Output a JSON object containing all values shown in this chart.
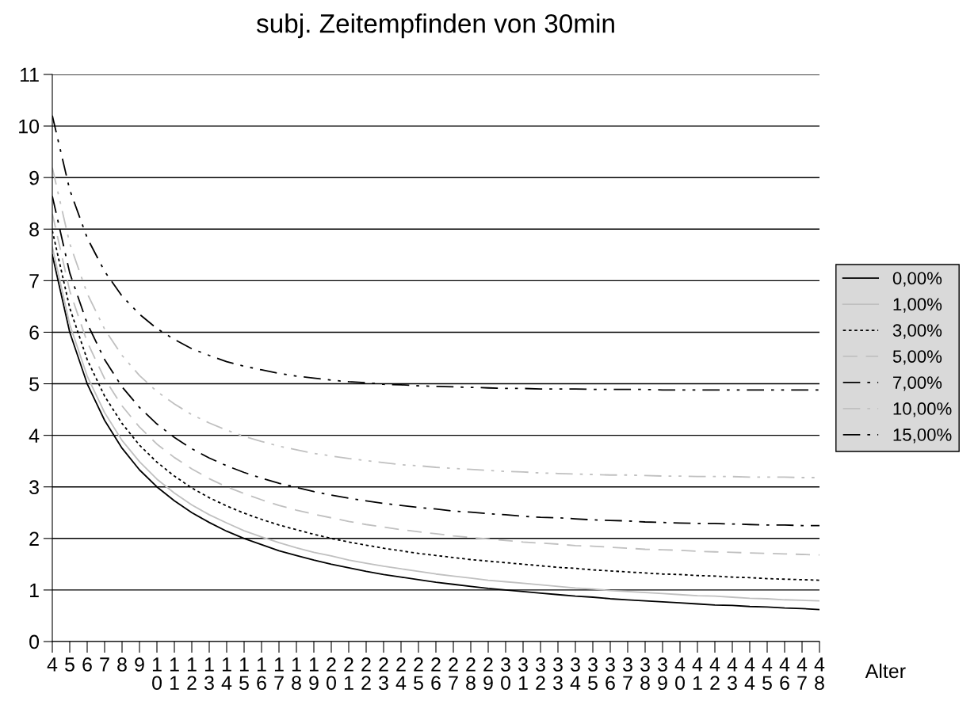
{
  "chart_data": {
    "type": "line",
    "title": "subj. Zeitempfinden von 30min",
    "xlabel": "Alter",
    "categories": [
      "4",
      "5",
      "6",
      "7",
      "8",
      "9",
      "10",
      "11",
      "12",
      "13",
      "14",
      "15",
      "16",
      "17",
      "18",
      "19",
      "20",
      "21",
      "22",
      "23",
      "24",
      "25",
      "26",
      "27",
      "28",
      "29",
      "30",
      "31",
      "32",
      "33",
      "34",
      "35",
      "36",
      "37",
      "38",
      "39",
      "40",
      "41",
      "42",
      "43",
      "44",
      "45",
      "46",
      "47",
      "48"
    ],
    "ylim": [
      0,
      11
    ],
    "yticks": [
      0,
      1,
      2,
      3,
      4,
      5,
      6,
      7,
      8,
      9,
      10,
      11
    ],
    "grid": "y",
    "legend": "right",
    "marker": "none",
    "series": [
      {
        "name": "0,00%",
        "color": "#000000",
        "line_style": "solid",
        "values": [
          7.5,
          6.0,
          5.0,
          4.29,
          3.75,
          3.33,
          3.0,
          2.73,
          2.5,
          2.31,
          2.14,
          2.0,
          1.88,
          1.76,
          1.67,
          1.58,
          1.5,
          1.43,
          1.36,
          1.3,
          1.25,
          1.2,
          1.15,
          1.11,
          1.07,
          1.03,
          1.0,
          0.97,
          0.94,
          0.91,
          0.88,
          0.86,
          0.83,
          0.81,
          0.79,
          0.77,
          0.75,
          0.73,
          0.71,
          0.7,
          0.68,
          0.67,
          0.65,
          0.64,
          0.62
        ]
      },
      {
        "name": "1,00%",
        "color": "#c0c0c0",
        "line_style": "solid",
        "values": [
          7.65,
          6.15,
          5.15,
          4.44,
          3.9,
          3.49,
          3.15,
          2.88,
          2.65,
          2.46,
          2.3,
          2.15,
          2.03,
          1.92,
          1.82,
          1.73,
          1.66,
          1.58,
          1.52,
          1.46,
          1.41,
          1.36,
          1.31,
          1.27,
          1.23,
          1.19,
          1.16,
          1.13,
          1.1,
          1.07,
          1.04,
          1.02,
          0.99,
          0.97,
          0.95,
          0.93,
          0.91,
          0.89,
          0.88,
          0.86,
          0.84,
          0.83,
          0.81,
          0.8,
          0.79
        ]
      },
      {
        "name": "3,00%",
        "color": "#000000",
        "line_style": "dotted",
        "values": [
          7.97,
          6.47,
          5.47,
          4.76,
          4.23,
          3.81,
          3.48,
          3.21,
          2.98,
          2.79,
          2.63,
          2.49,
          2.37,
          2.26,
          2.17,
          2.08,
          2.0,
          1.93,
          1.87,
          1.81,
          1.76,
          1.71,
          1.67,
          1.63,
          1.59,
          1.56,
          1.53,
          1.5,
          1.47,
          1.44,
          1.42,
          1.39,
          1.37,
          1.35,
          1.33,
          1.31,
          1.3,
          1.28,
          1.27,
          1.25,
          1.24,
          1.22,
          1.21,
          1.2,
          1.19
        ]
      },
      {
        "name": "5,00%",
        "color": "#c0c0c0",
        "line_style": "dashed",
        "values": [
          8.3,
          6.8,
          5.81,
          5.1,
          4.57,
          4.16,
          3.83,
          3.57,
          3.35,
          3.16,
          3.0,
          2.87,
          2.75,
          2.64,
          2.55,
          2.47,
          2.4,
          2.33,
          2.27,
          2.22,
          2.17,
          2.13,
          2.09,
          2.05,
          2.02,
          1.99,
          1.96,
          1.93,
          1.91,
          1.89,
          1.86,
          1.85,
          1.83,
          1.81,
          1.79,
          1.78,
          1.77,
          1.75,
          1.74,
          1.73,
          1.72,
          1.71,
          1.7,
          1.69,
          1.68
        ]
      },
      {
        "name": "7,00%",
        "color": "#000000",
        "line_style": "dashdot",
        "values": [
          8.64,
          7.15,
          6.17,
          5.47,
          4.94,
          4.54,
          4.22,
          3.96,
          3.74,
          3.56,
          3.41,
          3.28,
          3.17,
          3.07,
          2.99,
          2.91,
          2.84,
          2.78,
          2.73,
          2.68,
          2.64,
          2.6,
          2.57,
          2.53,
          2.51,
          2.48,
          2.46,
          2.43,
          2.41,
          2.4,
          2.38,
          2.36,
          2.35,
          2.34,
          2.32,
          2.31,
          2.3,
          2.29,
          2.29,
          2.28,
          2.27,
          2.26,
          2.26,
          2.25,
          2.25
        ]
      },
      {
        "name": "10,00%",
        "color": "#c0c0c0",
        "line_style": "dashdotdot",
        "values": [
          9.19,
          7.72,
          6.75,
          6.06,
          5.55,
          5.16,
          4.85,
          4.61,
          4.4,
          4.24,
          4.1,
          3.98,
          3.88,
          3.79,
          3.72,
          3.65,
          3.6,
          3.55,
          3.51,
          3.47,
          3.43,
          3.41,
          3.38,
          3.36,
          3.34,
          3.32,
          3.3,
          3.29,
          3.27,
          3.26,
          3.25,
          3.24,
          3.23,
          3.23,
          3.22,
          3.21,
          3.21,
          3.2,
          3.2,
          3.2,
          3.19,
          3.19,
          3.19,
          3.18,
          3.18
        ]
      },
      {
        "name": "15,00%",
        "color": "#000000",
        "line_style": "dashdotdot",
        "values": [
          10.2,
          8.76,
          7.83,
          7.18,
          6.7,
          6.35,
          6.07,
          5.86,
          5.68,
          5.55,
          5.43,
          5.34,
          5.27,
          5.2,
          5.15,
          5.11,
          5.07,
          5.04,
          5.02,
          4.99,
          4.98,
          4.96,
          4.95,
          4.94,
          4.93,
          4.92,
          4.91,
          4.91,
          4.9,
          4.9,
          4.9,
          4.89,
          4.89,
          4.89,
          4.89,
          4.88,
          4.88,
          4.88,
          4.88,
          4.88,
          4.88,
          4.88,
          4.88,
          4.88,
          4.88
        ]
      }
    ]
  }
}
